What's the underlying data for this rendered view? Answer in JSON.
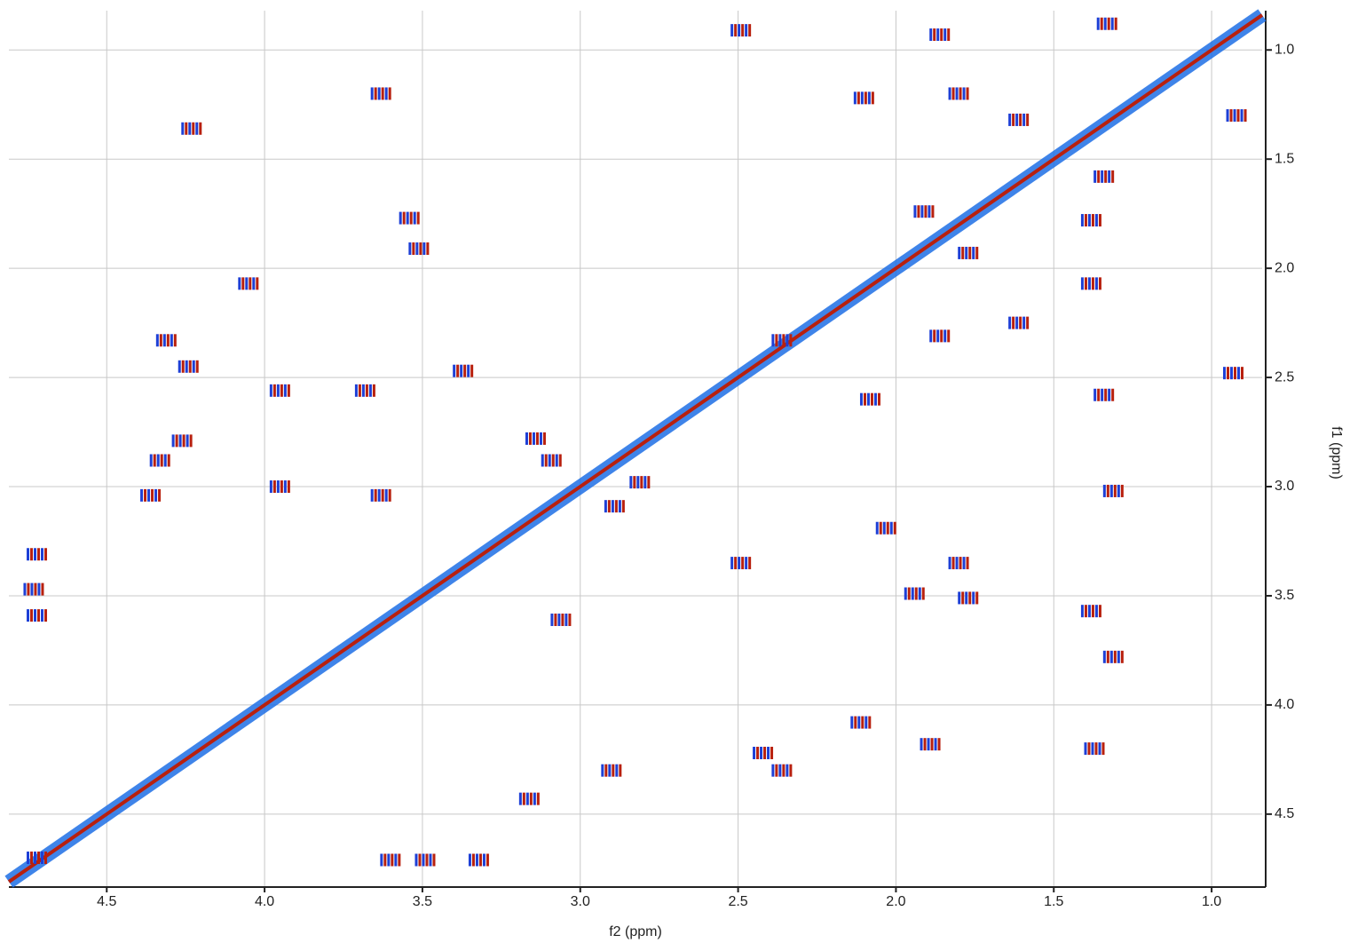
{
  "chart_data": {
    "type": "scatter",
    "x_label": "f2 (ppm)",
    "y_label": "f1 (ppm)",
    "xlim": [
      4.81,
      0.84
    ],
    "ylim": [
      0.82,
      4.83
    ],
    "xticks": [
      {
        "value": 4.5,
        "label": "4.5"
      },
      {
        "value": 4,
        "label": "4.0"
      },
      3.5,
      {
        "value": 3,
        "label": "3.0"
      },
      2.5,
      {
        "value": 2,
        "label": "2.0"
      },
      1.5,
      {
        "value": 1,
        "label": "1.0"
      }
    ],
    "yticks": [
      {
        "value": 1,
        "label": "1.0"
      },
      1.5,
      {
        "value": 2,
        "label": "2.0"
      },
      2.5,
      {
        "value": 3,
        "label": "3.0"
      },
      3.5,
      {
        "value": 4,
        "label": "4.0"
      },
      4.5
    ],
    "grid": true,
    "colors": [
      "#1d3fd6",
      "#b8200e"
    ],
    "diagonal_color": "#1e6fe6",
    "x": [
      3.63,
      4.23,
      3.54,
      3.51,
      4.05,
      4.31,
      4.24,
      3.37,
      3.95,
      3.68,
      4.26,
      4.33,
      4.36,
      3.95,
      3.63,
      4.72,
      4.73,
      4.72,
      3.09,
      3.14,
      2.81,
      2.89,
      3.06,
      2.49,
      1.8,
      1.94,
      1.77,
      1.38,
      1.31,
      1.37,
      1.89,
      2.9,
      3.16,
      3.32,
      3.49,
      3.6,
      4.72,
      2.49,
      1.33,
      1.86,
      2.1,
      1.8,
      1.61,
      1.34,
      0.92,
      1.38,
      1.91,
      1.77,
      2.36,
      1.61,
      1.86,
      1.38,
      0.93,
      2.08,
      1.31,
      1.34,
      2.03,
      2.42,
      2.11,
      2.36
    ],
    "y": [
      1.2,
      1.36,
      1.77,
      1.91,
      2.07,
      2.33,
      2.45,
      2.47,
      2.56,
      2.56,
      2.79,
      2.88,
      3.04,
      3.0,
      3.04,
      3.31,
      3.47,
      3.59,
      2.88,
      2.78,
      2.98,
      3.09,
      3.61,
      3.35,
      3.35,
      3.49,
      3.51,
      3.57,
      3.78,
      4.2,
      4.18,
      4.3,
      4.43,
      4.71,
      4.71,
      4.71,
      4.7,
      0.91,
      0.88,
      0.93,
      1.22,
      1.2,
      1.32,
      1.58,
      1.3,
      1.78,
      1.74,
      1.93,
      2.33,
      2.25,
      2.31,
      2.07,
      2.48,
      2.6,
      3.02,
      2.58,
      3.19,
      4.22,
      4.08,
      4.3
    ]
  }
}
